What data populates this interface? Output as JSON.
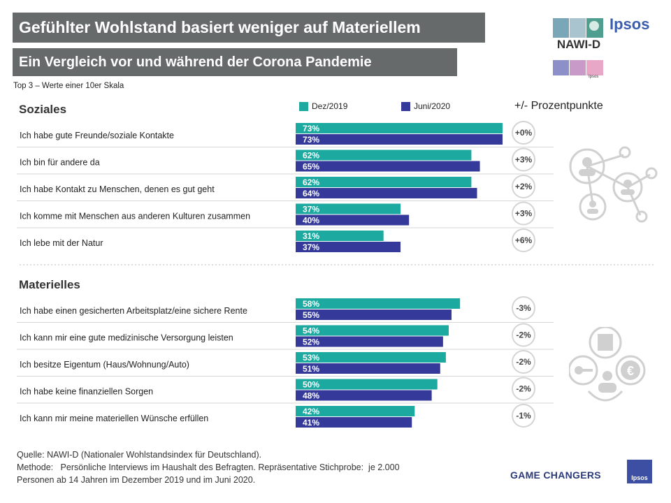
{
  "title": "Gefühlter Wohlstand basiert weniger auf Materiellem",
  "subtitle": "Ein Vergleich vor und während der Corona Pandemie",
  "scale_note": "Top 3 – Werte einer 10er Skala",
  "pp_header": "+/- Prozentpunkte",
  "legend": [
    {
      "label": "Dez/2019",
      "color": "#1ba9a0"
    },
    {
      "label": "Juni/2020",
      "color": "#34399a"
    }
  ],
  "logo": {
    "brand": "Ipsos",
    "product": "NAWI-D",
    "small": "Ipsos"
  },
  "source_lines": [
    "Quelle: NAWI-D (Nationaler Wohlstandsindex für Deutschland).",
    "Methode:   Persönliche Interviews im Haushalt des Befragten. Repräsentative Stichprobe:  je 2.000",
    "Personen ab 14 Jahren im Dezember 2019 und im Juni 2020."
  ],
  "footer": {
    "tagline": "GAME CHANGERS",
    "badge": "Ipsos"
  },
  "chart_data": {
    "type": "bar",
    "orientation": "horizontal",
    "unit": "%",
    "xlim": [
      0,
      73
    ],
    "series_names": [
      "Dez/2019",
      "Juni/2020"
    ],
    "groups": [
      {
        "title": "Soziales",
        "icon": "social-network-icon",
        "rows": [
          {
            "label": "Ich habe gute Freunde/soziale Kontakte",
            "values": [
              73,
              73
            ],
            "labels": [
              "73%",
              "73%"
            ],
            "change": "+0%"
          },
          {
            "label": "Ich bin für andere da",
            "values": [
              62,
              65
            ],
            "labels": [
              "62%",
              "65%"
            ],
            "change": "+3%"
          },
          {
            "label": "Ich habe Kontakt zu Menschen, denen es gut geht",
            "values": [
              62,
              64
            ],
            "labels": [
              "62%",
              "64%"
            ],
            "change": "+2%"
          },
          {
            "label": "Ich komme mit Menschen aus anderen Kulturen zusammen",
            "values": [
              37,
              40
            ],
            "labels": [
              "37%",
              "40%"
            ],
            "change": "+3%"
          },
          {
            "label": "Ich lebe mit der Natur",
            "values": [
              31,
              37
            ],
            "labels": [
              "31%",
              "37%"
            ],
            "change": "+6%"
          }
        ]
      },
      {
        "title": "Materielles",
        "icon": "material-assets-icon",
        "rows": [
          {
            "label": "Ich habe einen gesicherten Arbeitsplatz/eine sichere Rente",
            "values": [
              58,
              55
            ],
            "labels": [
              "58%",
              "55%"
            ],
            "change": "-3%"
          },
          {
            "label": "Ich kann mir eine gute medizinische Versorgung leisten",
            "values": [
              54,
              52
            ],
            "labels": [
              "54%",
              "52%"
            ],
            "change": "-2%"
          },
          {
            "label": "Ich besitze Eigentum (Haus/Wohnung/Auto)",
            "values": [
              53,
              51
            ],
            "labels": [
              "53%",
              "51%"
            ],
            "change": "-2%"
          },
          {
            "label": "Ich habe keine finanziellen Sorgen",
            "values": [
              50,
              48
            ],
            "labels": [
              "50%",
              "48%"
            ],
            "change": "-2%"
          },
          {
            "label": "Ich kann mir meine materiellen Wünsche erfüllen",
            "values": [
              42,
              41
            ],
            "labels": [
              "42%",
              "41%"
            ],
            "change": "-1%"
          }
        ]
      }
    ]
  }
}
